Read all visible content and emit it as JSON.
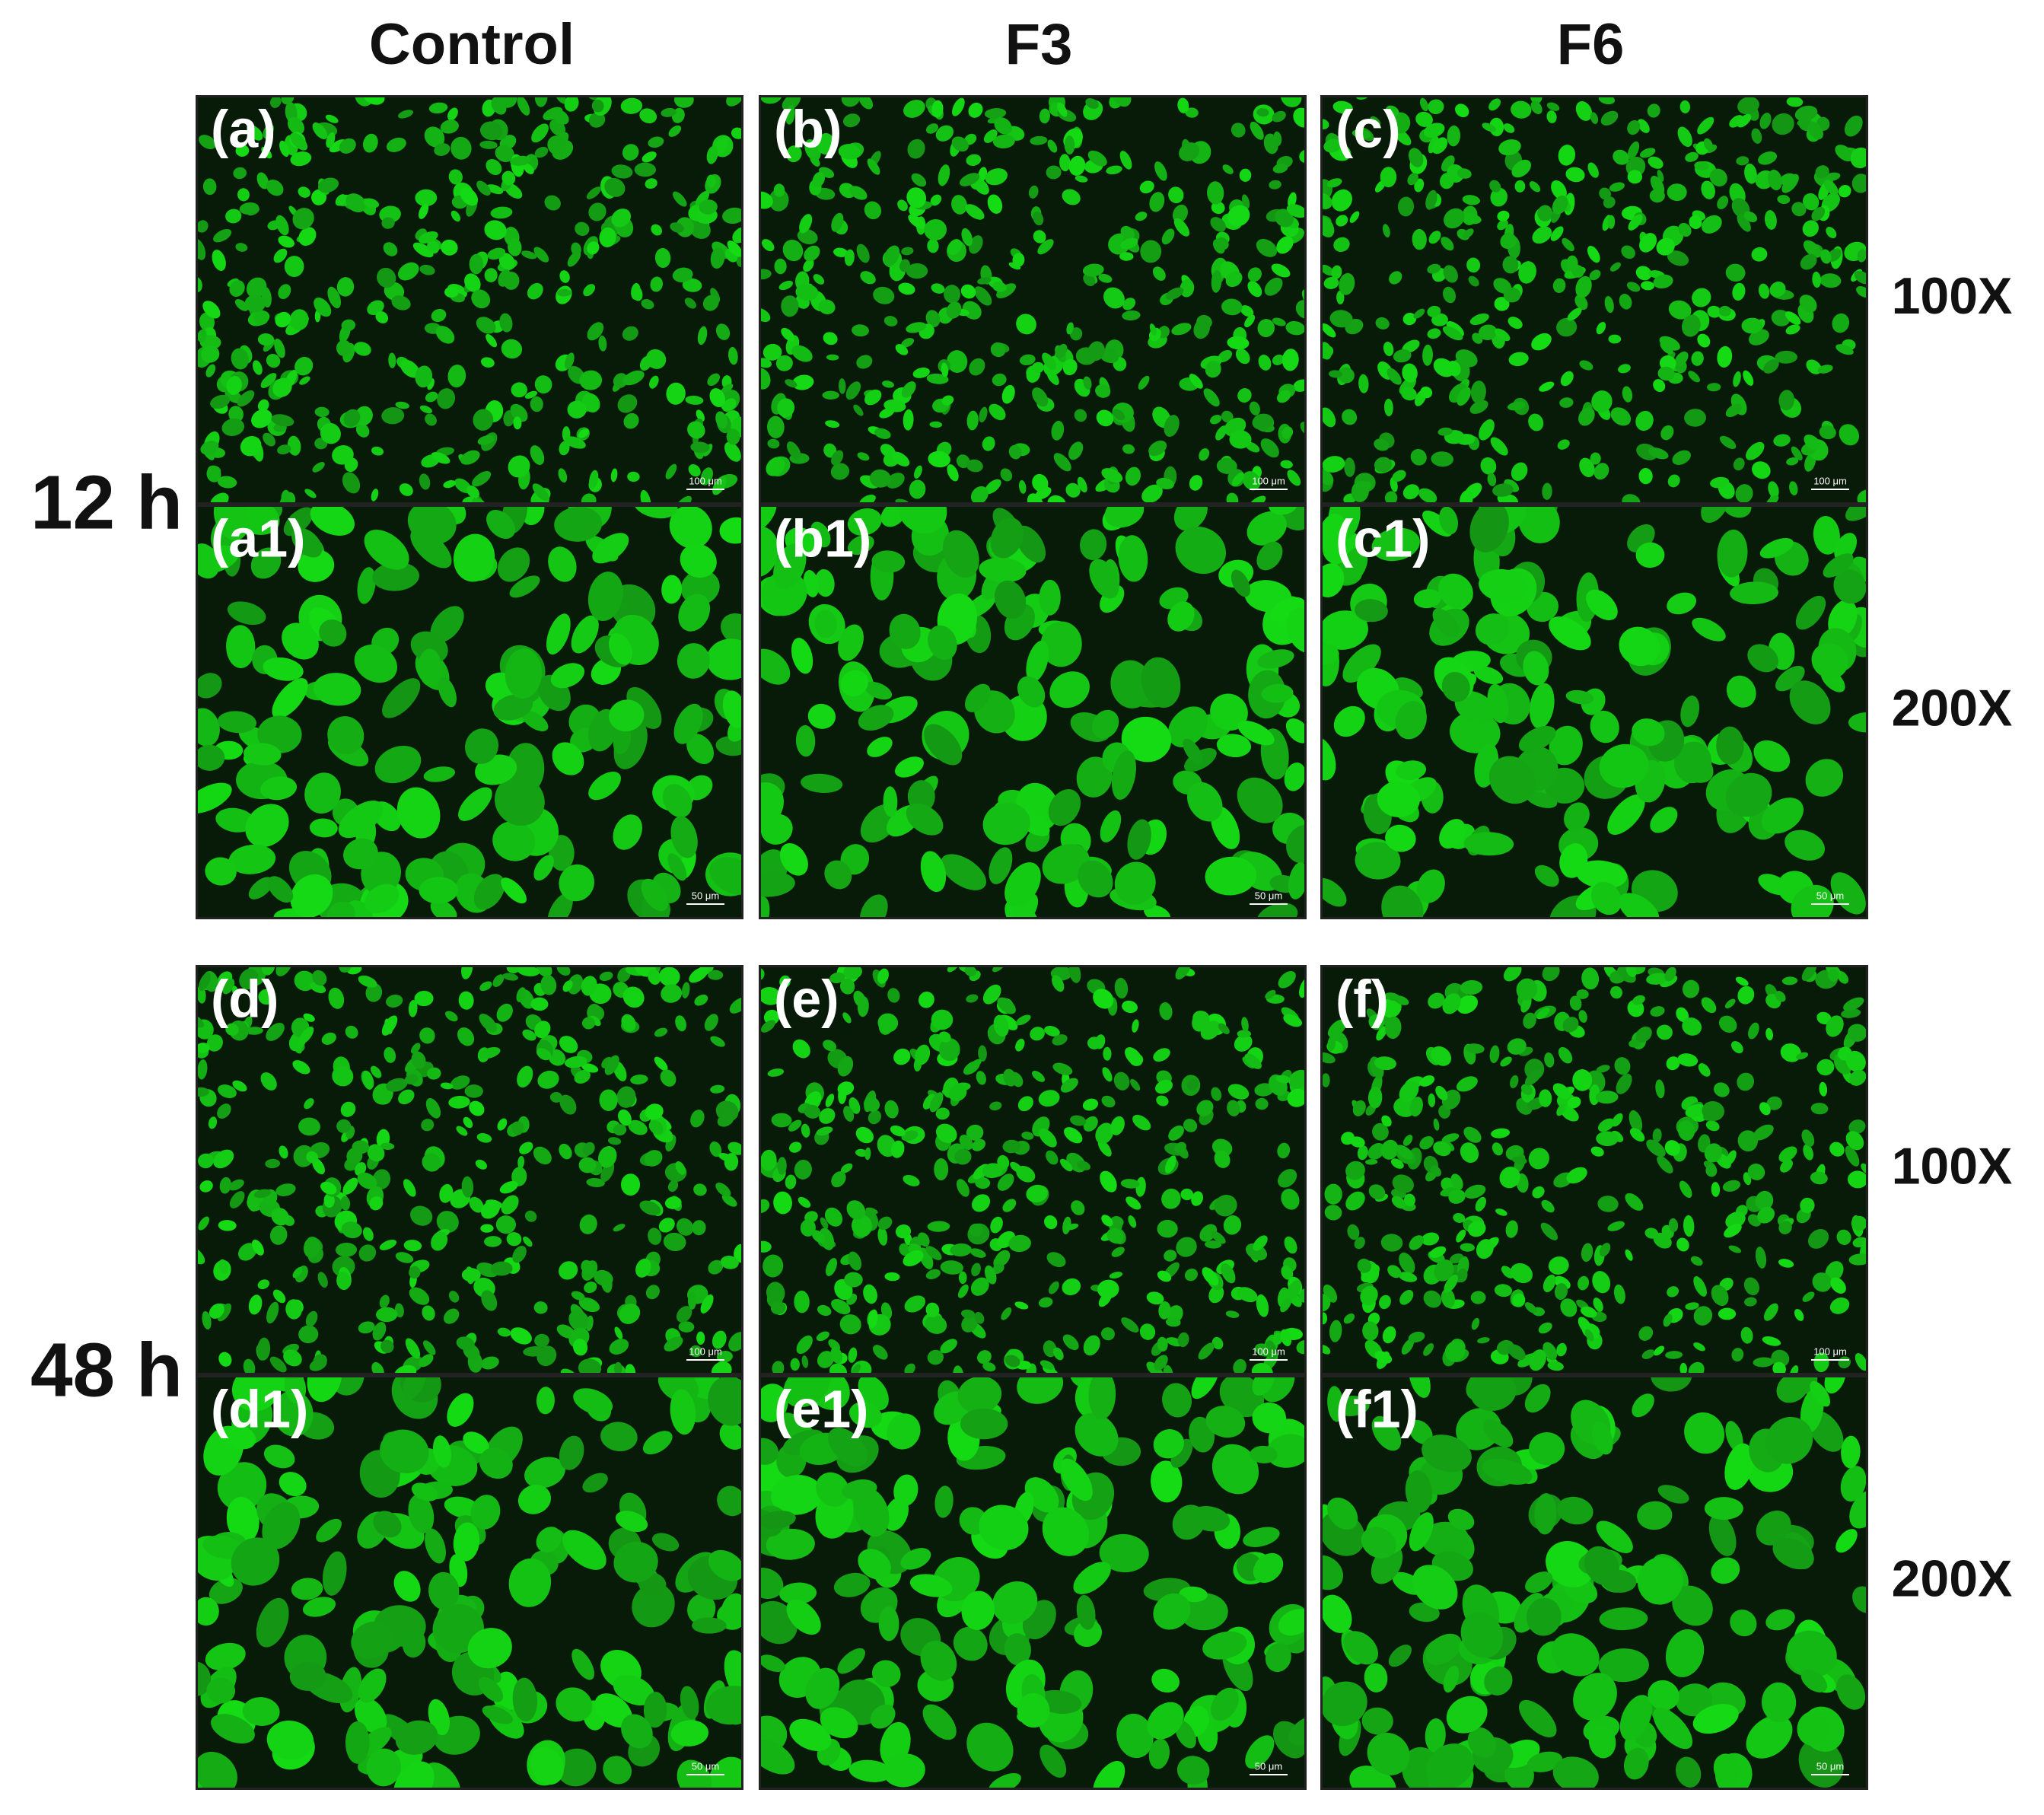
{
  "column_headers": [
    "Control",
    "F3",
    "F6"
  ],
  "row_labels": [
    "12 h",
    "48 h"
  ],
  "magnifications": [
    "100X",
    "200X",
    "100X",
    "200X"
  ],
  "panels": [
    {
      "label": "(a)",
      "scale_bar": "100 μm"
    },
    {
      "label": "(b)",
      "scale_bar": "100 μm"
    },
    {
      "label": "(c)",
      "scale_bar": "100 μm"
    },
    {
      "label": "(a1)",
      "scale_bar": "50 μm"
    },
    {
      "label": "(b1)",
      "scale_bar": "50 μm"
    },
    {
      "label": "(c1)",
      "scale_bar": "50 μm"
    },
    {
      "label": "(d)",
      "scale_bar": "100 μm"
    },
    {
      "label": "(e)",
      "scale_bar": "100 μm"
    },
    {
      "label": "(f)",
      "scale_bar": "100 μm"
    },
    {
      "label": "(d1)",
      "scale_bar": "50 μm"
    },
    {
      "label": "(e1)",
      "scale_bar": "50 μm"
    },
    {
      "label": "(f1)",
      "scale_bar": "50 μm"
    }
  ]
}
